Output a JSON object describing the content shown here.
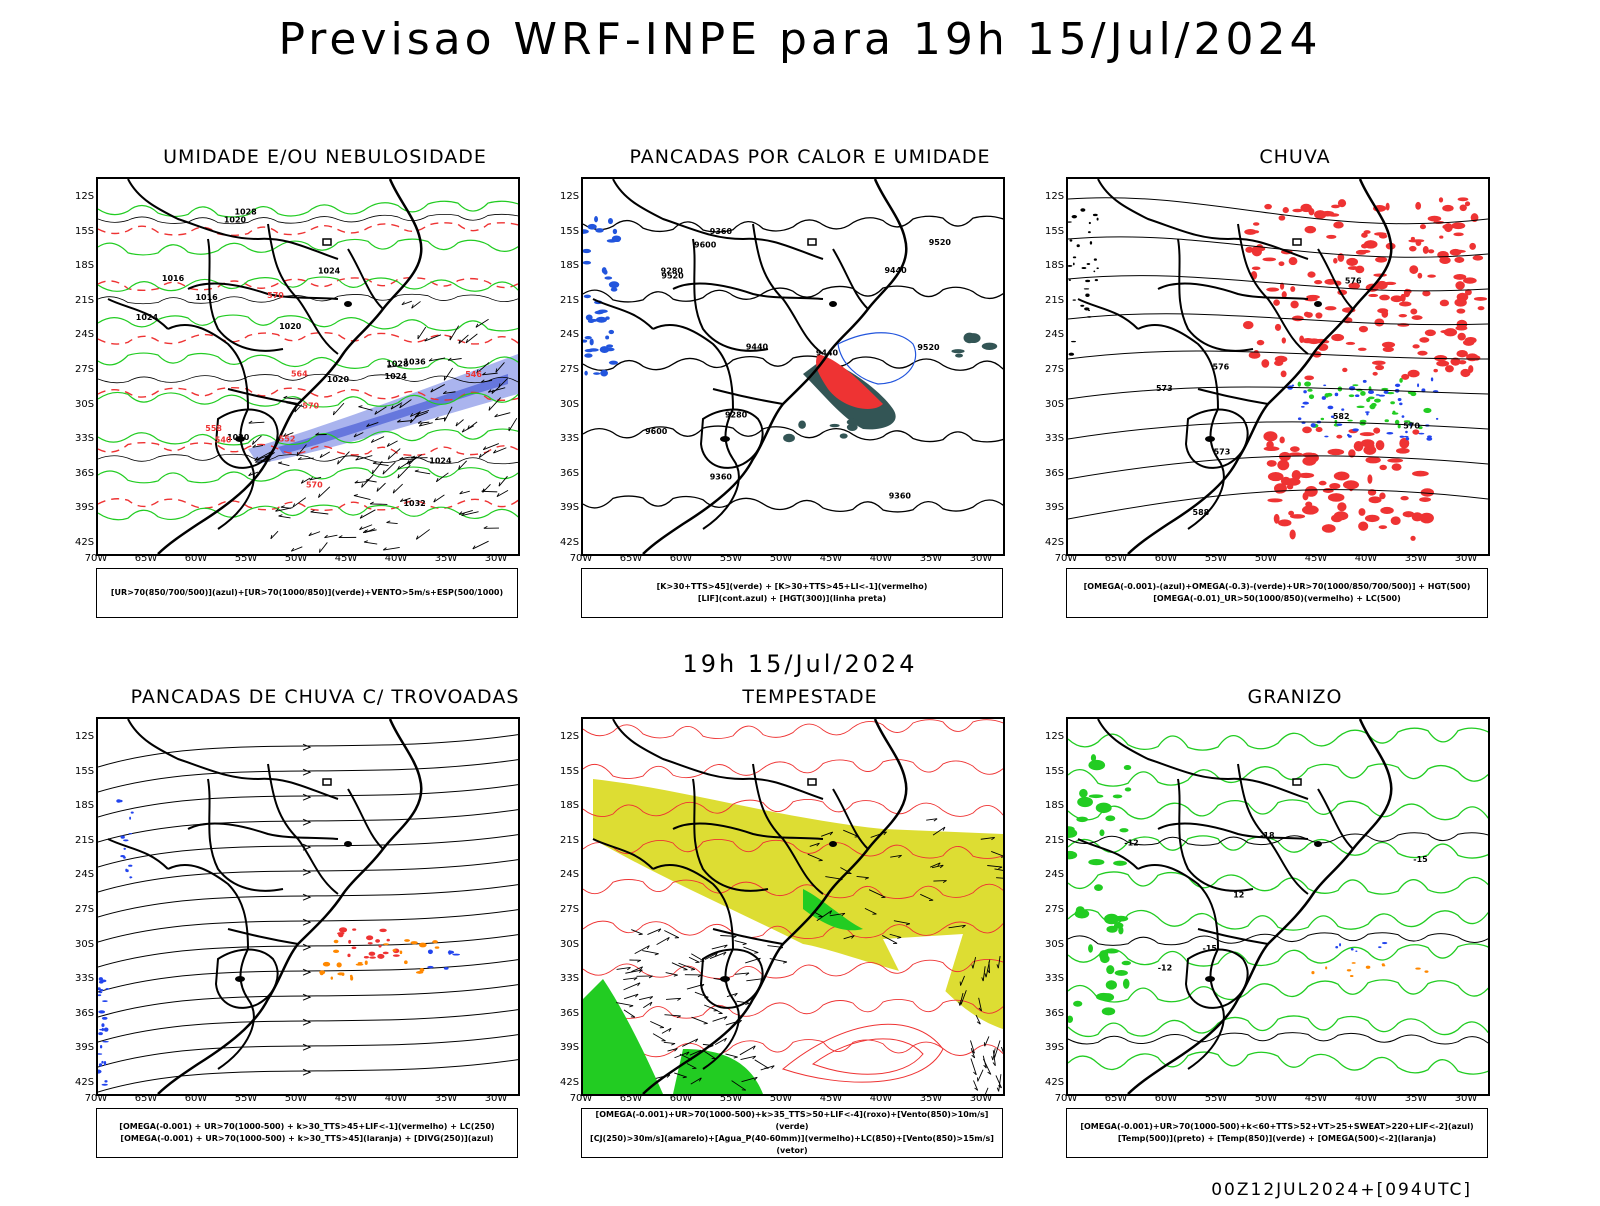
{
  "title": "Previsao WRF-INPE  para 19h 15/Jul/2024",
  "mid_title": "19h 15/Jul/2024",
  "footer": "00Z12JUL2024+[094UTC]",
  "lat_labels": [
    "12S",
    "15S",
    "18S",
    "21S",
    "24S",
    "27S",
    "30S",
    "33S",
    "36S",
    "39S",
    "42S"
  ],
  "lon_labels": [
    "70W",
    "65W",
    "60W",
    "55W",
    "50W",
    "45W",
    "40W",
    "35W",
    "30W"
  ],
  "panels": [
    {
      "title": "UMIDADE E/OU NEBULOSIDADE",
      "legend": [
        "[UR>70(850/700/500)](azul)+[UR>70(1000/850)](verde)+VENTO>5m/s+ESP(500/1000)"
      ],
      "labels": [
        "1016",
        "1016",
        "1020",
        "1020",
        "1020",
        "1024",
        "1024",
        "1020",
        "1024",
        "1024",
        "1028",
        "1028",
        "1032",
        "1036",
        "570",
        "570",
        "570",
        "564",
        "558",
        "552",
        "546",
        "540"
      ]
    },
    {
      "title": "PANCADAS POR CALOR E UMIDADE",
      "legend": [
        "[K>30+TTS>45](verde) + [K>30+TTS>45+LI<-1](vermelho)",
        "[LIF](cont.azul) + [HGT(300)](linha preta)"
      ],
      "labels": [
        "9600",
        "9520",
        "9440",
        "9360",
        "9600",
        "9520",
        "9440",
        "9360",
        "9280",
        "9520",
        "9440",
        "9360",
        "9280"
      ]
    },
    {
      "title": "CHUVA",
      "legend": [
        "[OMEGA(-0.001)-(azul)+OMEGA(-0.3)-(verde)+UR>70(1000/850/700/500)] + HGT(500)",
        "[OMEGA(-0.01)_UR>50(1000/850)(vermelho) + LC(500)"
      ],
      "labels": [
        "588",
        "582",
        "576",
        "573",
        "570",
        "576",
        "573"
      ]
    },
    {
      "title": "PANCADAS DE CHUVA C/ TROVOADAS",
      "legend": [
        "[OMEGA(-0.001) + UR>70(1000-500) + k>30_TTS>45+LIF<-1](vermelho) + LC(250)",
        "[OMEGA(-0.001) + UR>70(1000-500) + k>30_TTS>45](laranja) + [DIVG(250)](azul)"
      ],
      "labels": []
    },
    {
      "title": "TEMPESTADE",
      "legend": [
        "[OMEGA(-0.001)+UR>70(1000-500)+k>35_TTS>50+LIF<-4](roxo)+[Vento(850)>10m/s](verde)",
        "[CJ(250)>30m/s](amarelo)+[Agua_P(40-60mm)](vermelho)+LC(850)+[Vento(850)>15m/s](vetor)"
      ],
      "labels": []
    },
    {
      "title": "GRANIZO",
      "legend": [
        "[OMEGA(-0.001)+UR>70(1000-500)+k<60+TTS>52+VT>25+SWEAT>220+LIF<-2](azul)",
        "[Temp(500)](preto) + [Temp(850)](verde) + [OMEGA(500)<-2](laranja)"
      ],
      "labels": [
        "12",
        "-12",
        "-12",
        "-15",
        "-15",
        "-18"
      ]
    }
  ],
  "colors": {
    "black": "#000000",
    "green": "#22cc22",
    "blue": "#2244ee",
    "red": "#ee3333",
    "orange": "#ff8800",
    "yellow": "#dddd33",
    "lightblue": "#aab4ee",
    "darkgreen": "#335555",
    "lightred": "#ff6666"
  }
}
